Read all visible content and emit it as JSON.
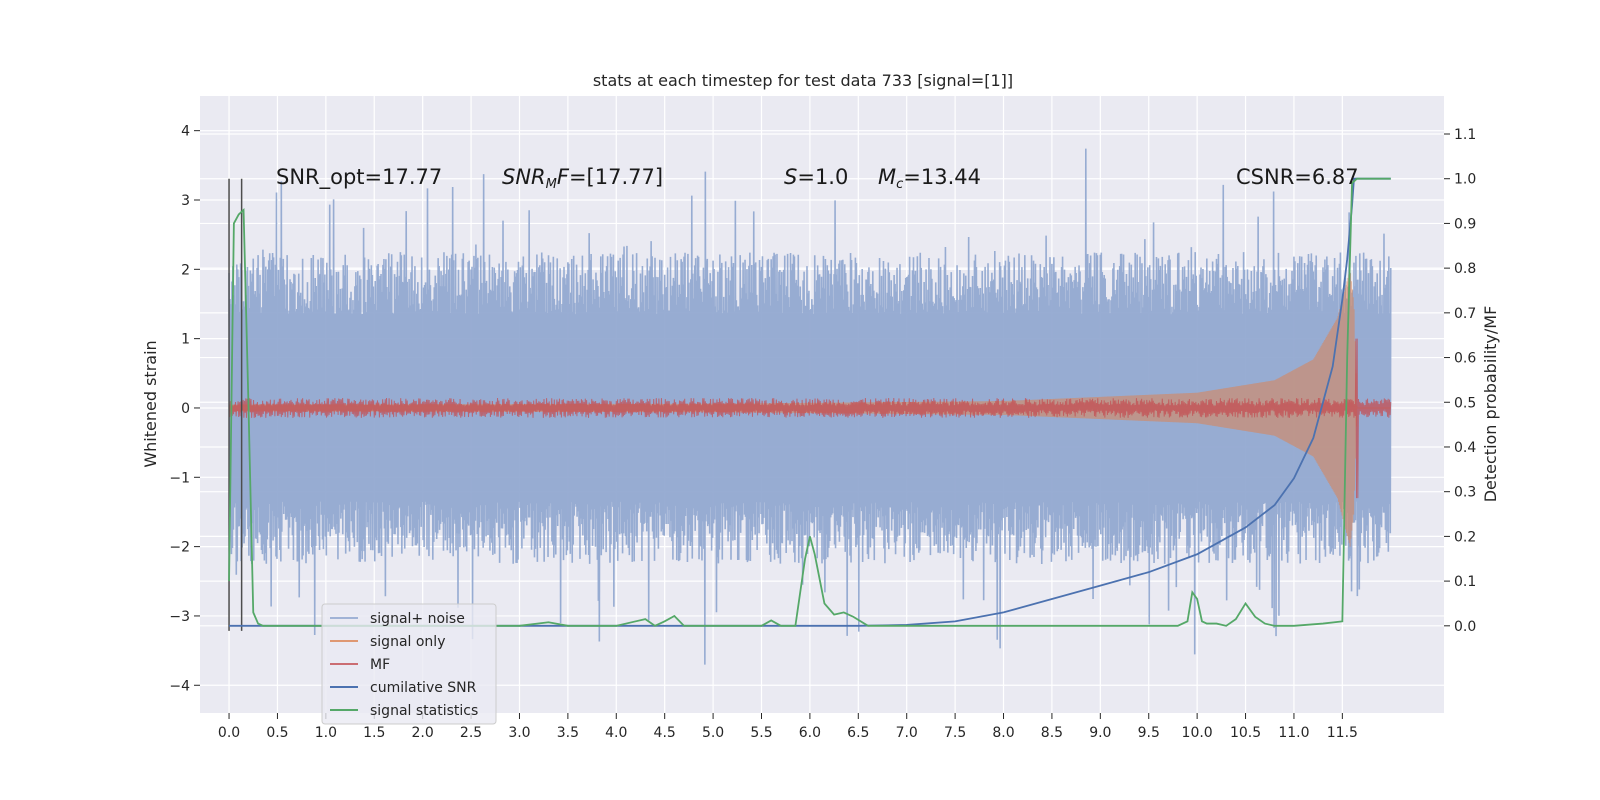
{
  "chart_data": {
    "type": "line",
    "title": "stats at each timestep for test data 733 [signal=[1]]",
    "ylabel_left": "Whitened strain",
    "ylabel_right": "Detection probability/MF",
    "xlim": [
      -0.3,
      12.55
    ],
    "ylim_left": [
      -4.4,
      4.5
    ],
    "ylim_right": [
      -0.195,
      1.185
    ],
    "x_ticks": [
      "0.0",
      "0.5",
      "1.0",
      "1.5",
      "2.0",
      "2.5",
      "3.0",
      "3.5",
      "4.0",
      "4.5",
      "5.0",
      "5.5",
      "6.0",
      "6.5",
      "7.0",
      "7.5",
      "8.0",
      "8.5",
      "9.0",
      "9.5",
      "10.0",
      "10.5",
      "11.0",
      "11.5"
    ],
    "y_ticks_left": [
      "4",
      "3",
      "2",
      "1",
      "0",
      "−1",
      "−2",
      "−3",
      "−4"
    ],
    "y_ticks_right": [
      "1.1",
      "1.0",
      "0.9",
      "0.8",
      "0.7",
      "0.6",
      "0.5",
      "0.4",
      "0.3",
      "0.2",
      "0.1",
      "0.0"
    ],
    "grid": true,
    "legend_position": "lower-left",
    "annotations": {
      "snr_opt": "SNR_opt=17.77",
      "snr_mf": "=[17.77]",
      "s": "=1.0",
      "mc": "=13.44",
      "csnr": "CSNR=6.87"
    },
    "series": [
      {
        "name": "signal+ noise",
        "color": "#8fa6cf",
        "axis": "left",
        "description_values": {
          "x_range": [
            0.0,
            12.0
          ],
          "typical_amplitude": 1.8,
          "peak_max": 4.1,
          "peak_min": -3.8
        }
      },
      {
        "name": "signal only",
        "color": "#dd8452",
        "axis": "left",
        "envelope": {
          "x": [
            0.0,
            5.0,
            8.0,
            10.0,
            10.8,
            11.2,
            11.45,
            11.58,
            11.62,
            11.65,
            12.0
          ],
          "amp": [
            0.05,
            0.06,
            0.1,
            0.22,
            0.4,
            0.7,
            1.3,
            2.0,
            1.5,
            0.0,
            0.0
          ]
        }
      },
      {
        "name": "MF",
        "color": "#c44e52",
        "axis": "left",
        "description_values": {
          "typical_amplitude": 0.12,
          "spike_x": 11.65,
          "spike_max": 1.0,
          "spike_min": -1.3
        }
      },
      {
        "name": "cumilative SNR",
        "color": "#4c72b0",
        "axis": "right",
        "x": [
          0.0,
          6.5,
          7.0,
          7.5,
          8.0,
          8.5,
          9.0,
          9.5,
          10.0,
          10.5,
          10.8,
          11.0,
          11.2,
          11.4,
          11.5,
          11.55,
          11.6,
          11.62,
          11.65,
          12.0
        ],
        "y": [
          0.0,
          0.0,
          0.002,
          0.01,
          0.03,
          0.06,
          0.09,
          0.12,
          0.16,
          0.22,
          0.27,
          0.33,
          0.42,
          0.58,
          0.73,
          0.82,
          0.94,
          1.0,
          1.0,
          1.0
        ]
      },
      {
        "name": "signal statistics",
        "color": "#55a868",
        "axis": "right",
        "x": [
          0.0,
          0.05,
          0.1,
          0.15,
          0.2,
          0.25,
          0.3,
          0.35,
          1.0,
          2.0,
          3.0,
          3.3,
          3.5,
          4.0,
          4.3,
          4.4,
          4.5,
          4.6,
          4.7,
          4.8,
          5.0,
          5.5,
          5.6,
          5.7,
          5.85,
          5.95,
          6.0,
          6.05,
          6.15,
          6.25,
          6.35,
          6.45,
          6.6,
          7.0,
          8.0,
          9.0,
          9.8,
          9.9,
          9.95,
          10.0,
          10.05,
          10.1,
          10.2,
          10.3,
          10.4,
          10.5,
          10.6,
          10.7,
          10.8,
          11.0,
          11.3,
          11.5,
          11.55,
          11.6,
          11.65,
          12.0
        ],
        "y": [
          0.1,
          0.9,
          0.92,
          0.93,
          0.5,
          0.03,
          0.005,
          0.0,
          0.0,
          0.0,
          0.0,
          0.008,
          0.0,
          0.0,
          0.015,
          0.0,
          0.01,
          0.022,
          0.0,
          0.0,
          0.0,
          0.0,
          0.012,
          0.0,
          0.0,
          0.15,
          0.2,
          0.16,
          0.05,
          0.025,
          0.03,
          0.02,
          0.0,
          0.0,
          0.0,
          0.0,
          0.0,
          0.01,
          0.075,
          0.06,
          0.01,
          0.005,
          0.005,
          0.0,
          0.015,
          0.05,
          0.02,
          0.005,
          0.0,
          0.0,
          0.005,
          0.01,
          0.6,
          0.99,
          1.0,
          1.0
        ]
      },
      {
        "name": "",
        "color": "#4d4d4d",
        "axis": "right",
        "note": "vertical markers",
        "x": [
          0.0,
          0.13
        ]
      }
    ]
  }
}
